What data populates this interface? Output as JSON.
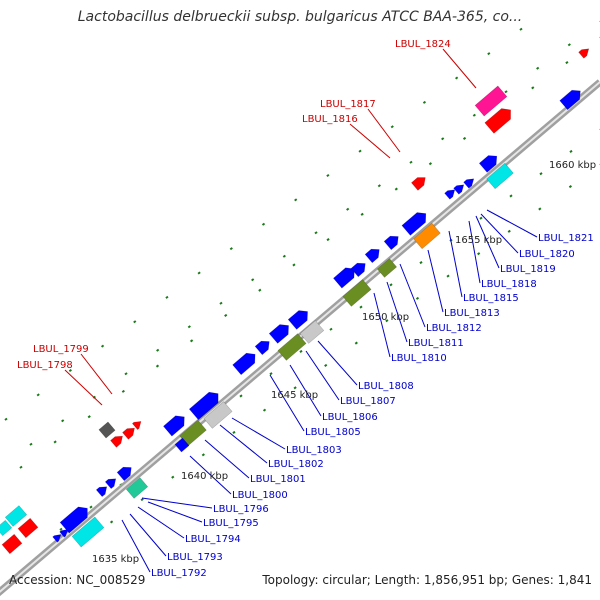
{
  "title": "Lactobacillus delbrueckii subsp. bulgaricus ATCC BAA-365, co...",
  "footer": {
    "accession": "Accession: NC_008529",
    "topology": "Topology: circular; Length: 1,856,951 bp; Genes: 1,841"
  },
  "colors": {
    "backbone": "#a0a0a0",
    "forward_cds": "#0000ff",
    "rrna": "#00e5e5",
    "trna": "#ff0000",
    "misc_feature": "#ff1493",
    "hypothetical": "#c8c8c8",
    "olive": "#6b8e23",
    "orange": "#ff8c00",
    "teal": "#20c997",
    "tick": "#1a7a1a",
    "label_blue": "#0000cc",
    "label_red": "#cc0000"
  },
  "scale_labels": [
    "1635 kbp",
    "1640 kbp",
    "1645 kbp",
    "1650 kbp",
    "1655 kbp",
    "1660 kbp"
  ],
  "labels_red": [
    "LBUL_1824",
    "LBUL_1817",
    "LBUL_1816",
    "LBUL_1799",
    "LBUL_1798"
  ],
  "labels_blue": [
    "LBUL_1821",
    "LBUL_1820",
    "LBUL_1819",
    "LBUL_1818",
    "LBUL_1815",
    "LBUL_1813",
    "LBUL_1812",
    "LBUL_1811",
    "LBUL_1810",
    "LBUL_1808",
    "LBUL_1807",
    "LBUL_1806",
    "LBUL_1805",
    "LBUL_1803",
    "LBUL_1802",
    "LBUL_1801",
    "LBUL_1800",
    "LBUL_1796",
    "LBUL_1795",
    "LBUL_1794",
    "LBUL_1793",
    "LBUL_1792"
  ]
}
